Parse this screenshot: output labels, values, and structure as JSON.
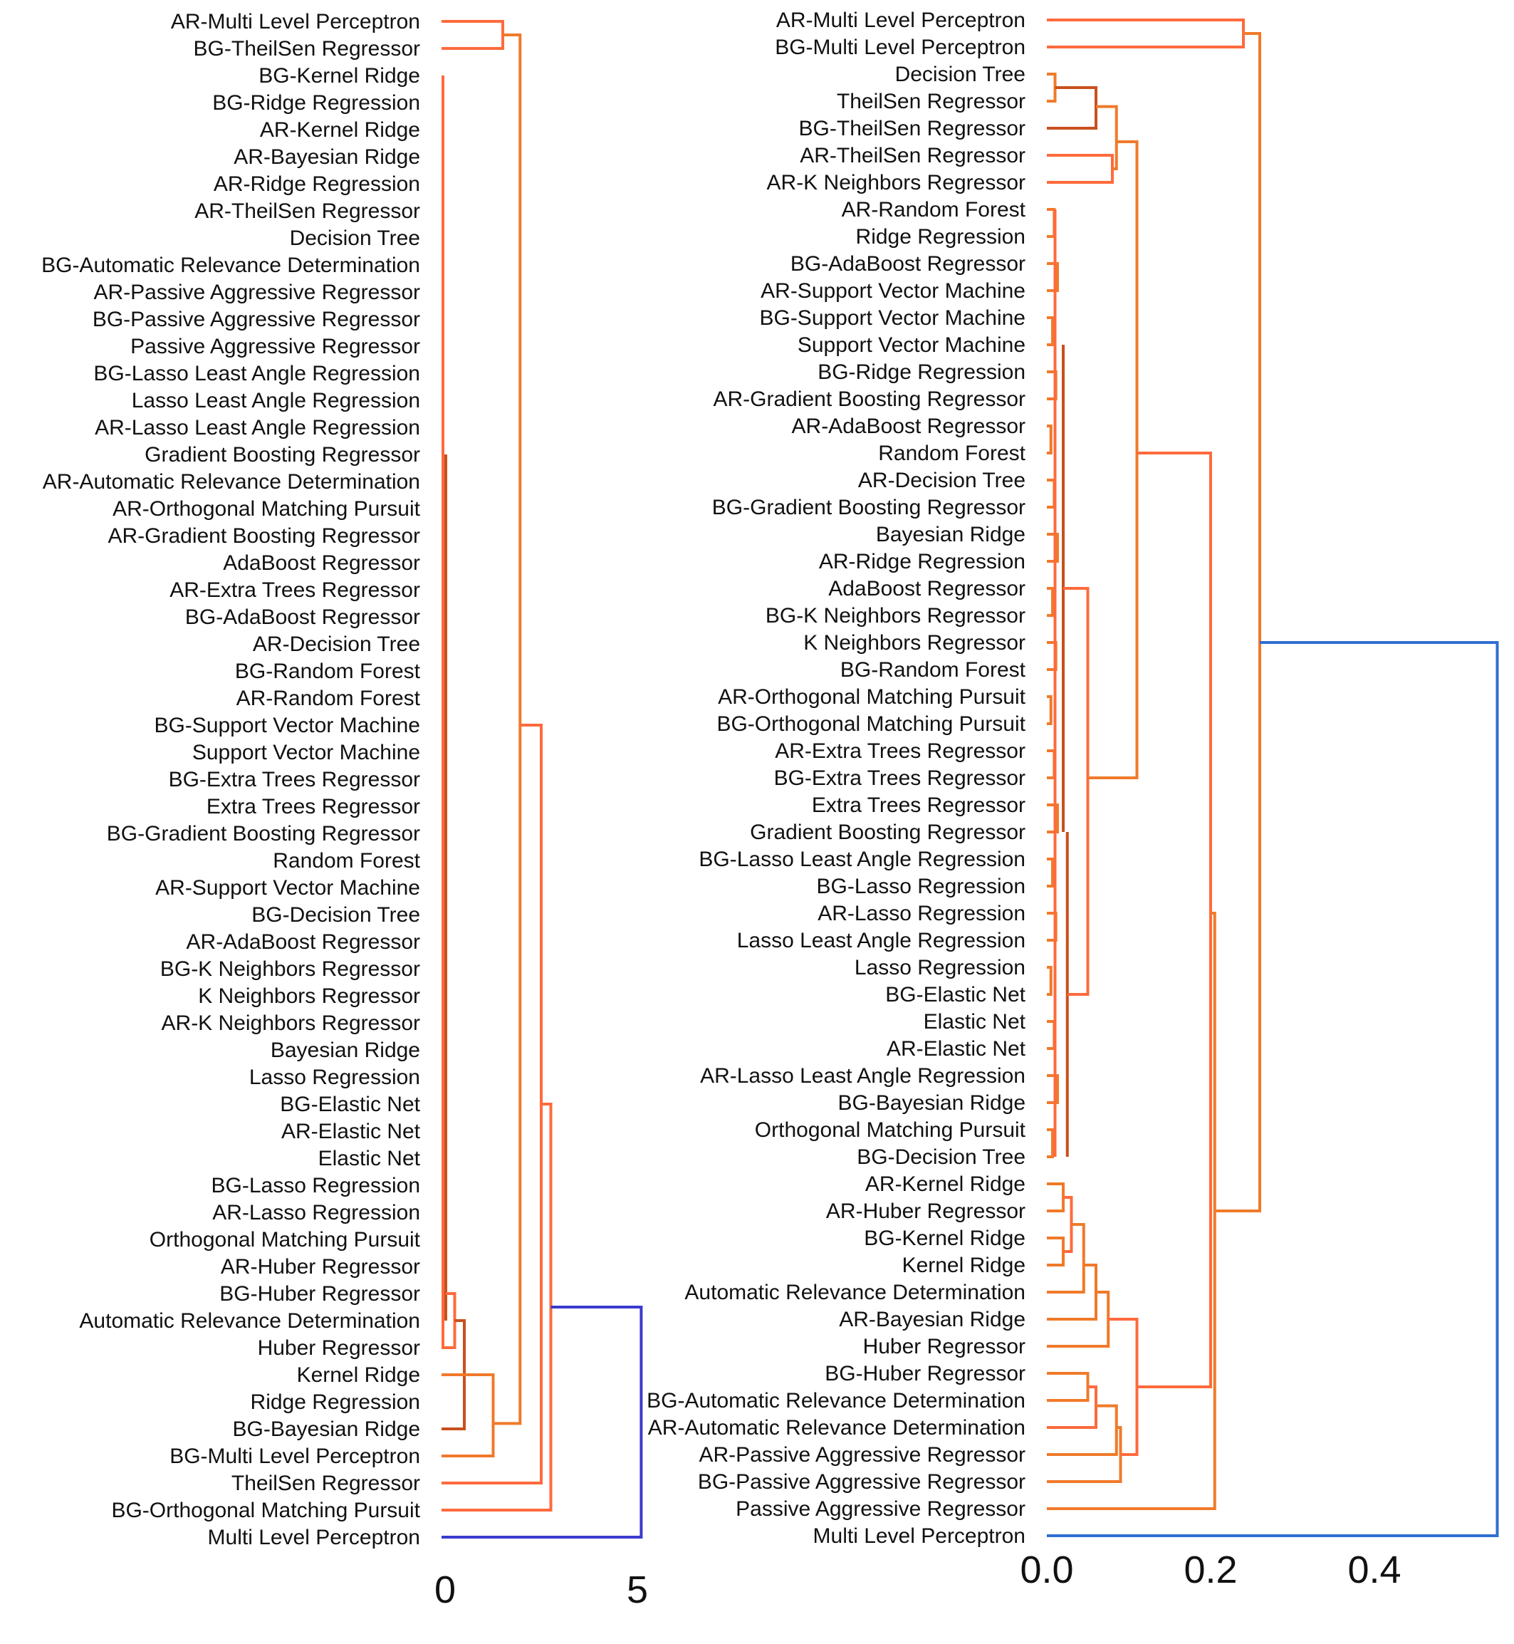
{
  "colors": {
    "branch_light": "#ff6a3c",
    "branch_mid": "#f07a2a",
    "branch_dark": "#c8501e",
    "root_left": "#3a3acf",
    "root_right": "#2f6fd0",
    "label": "#111111"
  },
  "left": {
    "ticks": [
      {
        "value": 0,
        "label": "0"
      },
      {
        "value": 5,
        "label": "5"
      }
    ],
    "leaves": [
      "AR-Multi Level Perceptron",
      "BG-TheilSen Regressor",
      "BG-Kernel Ridge",
      "BG-Ridge Regression",
      "AR-Kernel Ridge",
      "AR-Bayesian Ridge",
      "AR-Ridge Regression",
      "AR-TheilSen Regressor",
      "Decision Tree",
      "BG-Automatic Relevance Determination",
      "AR-Passive Aggressive Regressor",
      "BG-Passive Aggressive Regressor",
      "Passive Aggressive Regressor",
      "BG-Lasso Least Angle Regression",
      "Lasso Least Angle Regression",
      "AR-Lasso Least Angle Regression",
      "Gradient Boosting Regressor",
      "AR-Automatic Relevance Determination",
      "AR-Orthogonal Matching Pursuit",
      "AR-Gradient Boosting Regressor",
      "AdaBoost Regressor",
      "AR-Extra Trees Regressor",
      "BG-AdaBoost Regressor",
      "AR-Decision Tree",
      "BG-Random Forest",
      "AR-Random Forest",
      "BG-Support Vector Machine",
      "Support Vector Machine",
      "BG-Extra Trees Regressor",
      "Extra Trees Regressor",
      "BG-Gradient Boosting Regressor",
      "Random Forest",
      "AR-Support Vector Machine",
      "BG-Decision Tree",
      "AR-AdaBoost Regressor",
      "BG-K Neighbors Regressor",
      "K Neighbors Regressor",
      "AR-K Neighbors Regressor",
      "Bayesian Ridge",
      "Lasso Regression",
      "BG-Elastic Net",
      "AR-Elastic Net",
      "Elastic Net",
      "BG-Lasso Regression",
      "AR-Lasso Regression",
      "Orthogonal Matching Pursuit",
      "AR-Huber Regressor",
      "BG-Huber Regressor",
      "Automatic Relevance Determination",
      "Huber Regressor",
      "Kernel Ridge",
      "Ridge Regression",
      "BG-Bayesian Ridge",
      "BG-Multi Level Perceptron",
      "TheilSen Regressor",
      "BG-Orthogonal Matching Pursuit",
      "Multi Level Perceptron"
    ]
  },
  "right": {
    "ticks": [
      {
        "value": 0.0,
        "label": "0.0"
      },
      {
        "value": 0.2,
        "label": "0.2"
      },
      {
        "value": 0.4,
        "label": "0.4"
      }
    ],
    "leaves": [
      "AR-Multi Level Perceptron",
      "BG-Multi Level Perceptron",
      "Decision Tree",
      "TheilSen Regressor",
      "BG-TheilSen Regressor",
      "AR-TheilSen Regressor",
      "AR-K Neighbors Regressor",
      "AR-Random Forest",
      "Ridge Regression",
      "BG-AdaBoost Regressor",
      "AR-Support Vector Machine",
      "BG-Support Vector Machine",
      "Support Vector Machine",
      "BG-Ridge Regression",
      "AR-Gradient Boosting Regressor",
      "AR-AdaBoost Regressor",
      "Random Forest",
      "AR-Decision Tree",
      "BG-Gradient Boosting Regressor",
      "Bayesian Ridge",
      "AR-Ridge Regression",
      "AdaBoost Regressor",
      "BG-K Neighbors Regressor",
      "K Neighbors Regressor",
      "BG-Random Forest",
      "AR-Orthogonal Matching Pursuit",
      "BG-Orthogonal Matching Pursuit",
      "AR-Extra Trees Regressor",
      "BG-Extra Trees Regressor",
      "Extra Trees Regressor",
      "Gradient Boosting Regressor",
      "BG-Lasso Least Angle Regression",
      "BG-Lasso Regression",
      "AR-Lasso Regression",
      "Lasso Least Angle Regression",
      "Lasso Regression",
      "BG-Elastic Net",
      "Elastic Net",
      "AR-Elastic Net",
      "AR-Lasso Least Angle Regression",
      "BG-Bayesian Ridge",
      "Orthogonal Matching Pursuit",
      "BG-Decision Tree",
      "AR-Kernel Ridge",
      "AR-Huber Regressor",
      "BG-Kernel Ridge",
      "Kernel Ridge",
      "Automatic Relevance Determination",
      "AR-Bayesian Ridge",
      "Huber Regressor",
      "BG-Huber Regressor",
      "BG-Automatic Relevance Determination",
      "AR-Automatic Relevance Determination",
      "AR-Passive Aggressive Regressor",
      "BG-Passive Aggressive Regressor",
      "Passive Aggressive Regressor",
      "Multi Level Perceptron"
    ]
  }
}
